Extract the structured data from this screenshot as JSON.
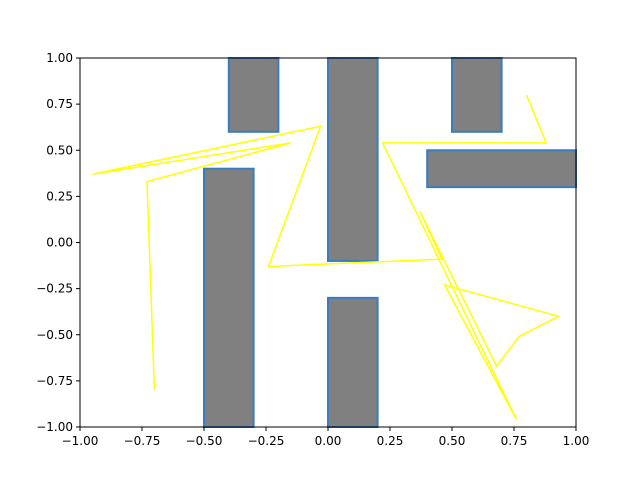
{
  "chart_data": {
    "type": "line",
    "title": "",
    "xlabel": "",
    "ylabel": "",
    "xlim": [
      -1.0,
      1.0
    ],
    "ylim": [
      -1.0,
      1.0
    ],
    "grid": false,
    "x_ticks": [
      "−1.00",
      "−0.75",
      "−0.50",
      "−0.25",
      "0.00",
      "0.25",
      "0.50",
      "0.75",
      "1.00"
    ],
    "x_tick_values": [
      -1.0,
      -0.75,
      -0.5,
      -0.25,
      0.0,
      0.25,
      0.5,
      0.75,
      1.0
    ],
    "y_ticks": [
      "−1.00",
      "−0.75",
      "−0.50",
      "−0.25",
      "0.00",
      "0.25",
      "0.50",
      "0.75",
      "1.00"
    ],
    "y_tick_values": [
      -1.0,
      -0.75,
      -0.5,
      -0.25,
      0.0,
      0.25,
      0.5,
      0.75,
      1.0
    ],
    "obstacles": [
      {
        "x0": -0.4,
        "x1": -0.2,
        "y0": 0.6,
        "y1": 1.0
      },
      {
        "x0": -0.5,
        "x1": -0.3,
        "y0": -1.0,
        "y1": 0.4
      },
      {
        "x0": 0.0,
        "x1": 0.2,
        "y0": -0.1,
        "y1": 1.0
      },
      {
        "x0": 0.0,
        "x1": 0.2,
        "y0": -1.0,
        "y1": -0.3
      },
      {
        "x0": 0.5,
        "x1": 0.7,
        "y0": 0.6,
        "y1": 1.0
      },
      {
        "x0": 0.4,
        "x1": 1.0,
        "y0": 0.3,
        "y1": 0.5
      }
    ],
    "path": {
      "x": [
        -0.7,
        -0.73,
        -0.15,
        -0.95,
        -0.03,
        -0.24,
        0.46,
        0.37,
        0.68,
        0.77,
        0.93,
        0.47,
        0.76,
        0.22,
        0.88,
        0.8
      ],
      "y": [
        -0.8,
        0.33,
        0.54,
        0.37,
        0.63,
        -0.13,
        -0.09,
        0.17,
        -0.67,
        -0.51,
        -0.4,
        -0.23,
        -0.96,
        0.54,
        0.54,
        0.8
      ]
    },
    "colors": {
      "obstacle_fill": "#808080",
      "obstacle_edge": "#3a7dbf",
      "path": "#ffff00"
    }
  }
}
